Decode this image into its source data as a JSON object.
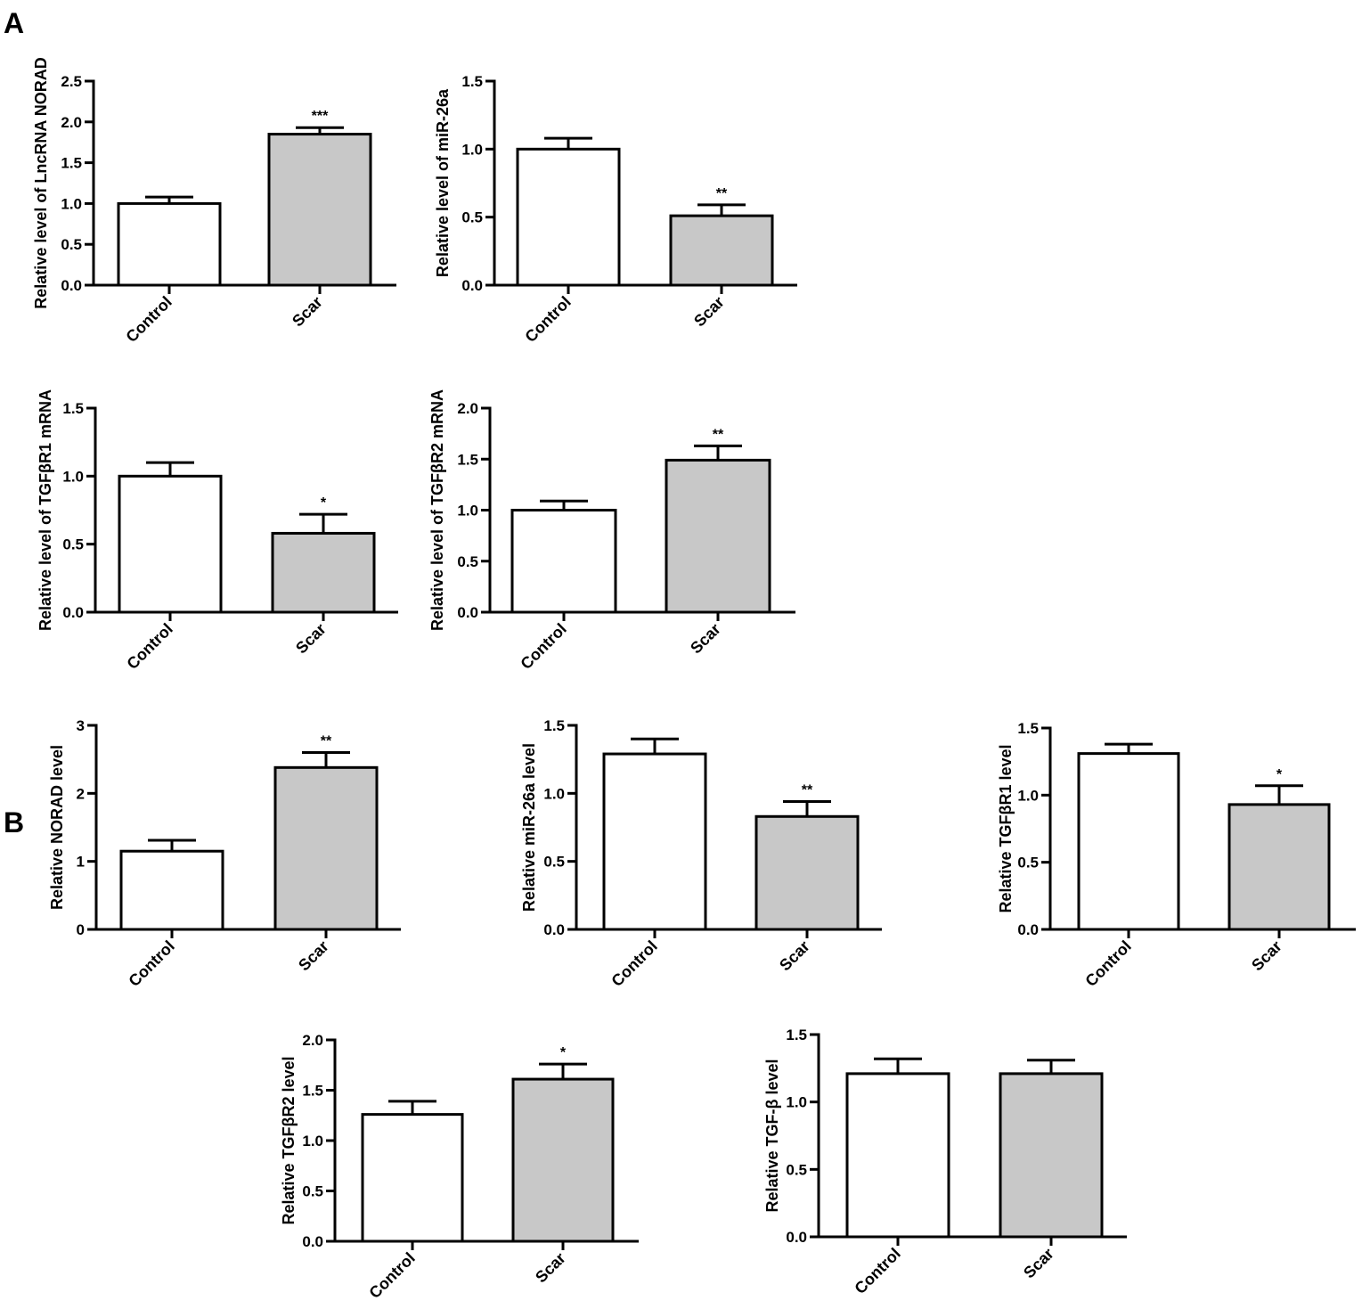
{
  "panel_labels": {
    "a": "A",
    "b": "B"
  },
  "chart_data": [
    {
      "type": "bar",
      "panel": "A",
      "categories": [
        "Control",
        "Scar"
      ],
      "values": [
        1.0,
        1.85
      ],
      "errors": [
        0.08,
        0.08
      ],
      "significance": [
        "",
        "***"
      ],
      "ylabel": "Relative level of LncRNA NORAD",
      "ylim": [
        0,
        2.5
      ],
      "yticks": [
        "0.0",
        "0.5",
        "1.0",
        "1.5",
        "2.0",
        "2.5"
      ],
      "colors": [
        "#ffffff",
        "#c8c8c8"
      ]
    },
    {
      "type": "bar",
      "panel": "A",
      "categories": [
        "Control",
        "Scar"
      ],
      "values": [
        1.0,
        0.51
      ],
      "errors": [
        0.08,
        0.08
      ],
      "significance": [
        "",
        "**"
      ],
      "ylabel": "Relative level of miR-26a",
      "ylim": [
        0,
        1.5
      ],
      "yticks": [
        "0.0",
        "0.5",
        "1.0",
        "1.5"
      ],
      "colors": [
        "#ffffff",
        "#c8c8c8"
      ]
    },
    {
      "type": "bar",
      "panel": "A",
      "categories": [
        "Control",
        "Scar"
      ],
      "values": [
        1.0,
        0.58
      ],
      "errors": [
        0.1,
        0.14
      ],
      "significance": [
        "",
        "*"
      ],
      "ylabel": "Relative level of TGFβR1 mRNA",
      "ylim": [
        0,
        1.5
      ],
      "yticks": [
        "0.0",
        "0.5",
        "1.0",
        "1.5"
      ],
      "colors": [
        "#ffffff",
        "#c8c8c8"
      ]
    },
    {
      "type": "bar",
      "panel": "A",
      "categories": [
        "Control",
        "Scar"
      ],
      "values": [
        1.0,
        1.49
      ],
      "errors": [
        0.09,
        0.14
      ],
      "significance": [
        "",
        "**"
      ],
      "ylabel": "Relative level of TGFβR2 mRNA",
      "ylim": [
        0,
        2.0
      ],
      "yticks": [
        "0.0",
        "0.5",
        "1.0",
        "1.5",
        "2.0"
      ],
      "colors": [
        "#ffffff",
        "#c8c8c8"
      ]
    },
    {
      "type": "bar",
      "panel": "B",
      "categories": [
        "Control",
        "Scar"
      ],
      "values": [
        1.15,
        2.38
      ],
      "errors": [
        0.16,
        0.22
      ],
      "significance": [
        "",
        "**"
      ],
      "ylabel": "Relative NORAD level",
      "ylim": [
        0,
        3
      ],
      "yticks": [
        "0",
        "1",
        "2",
        "3"
      ],
      "colors": [
        "#ffffff",
        "#c8c8c8"
      ]
    },
    {
      "type": "bar",
      "panel": "B",
      "categories": [
        "Control",
        "Scar"
      ],
      "values": [
        1.29,
        0.83
      ],
      "errors": [
        0.11,
        0.11
      ],
      "significance": [
        "",
        "**"
      ],
      "ylabel": "Relative miR-26a level",
      "ylim": [
        0,
        1.5
      ],
      "yticks": [
        "0.0",
        "0.5",
        "1.0",
        "1.5"
      ],
      "colors": [
        "#ffffff",
        "#c8c8c8"
      ]
    },
    {
      "type": "bar",
      "panel": "B",
      "categories": [
        "Control",
        "Scar"
      ],
      "values": [
        1.31,
        0.93
      ],
      "errors": [
        0.07,
        0.14
      ],
      "significance": [
        "",
        "*"
      ],
      "ylabel": "Relative TGFβR1 level",
      "ylim": [
        0,
        1.5
      ],
      "yticks": [
        "0.0",
        "0.5",
        "1.0",
        "1.5"
      ],
      "colors": [
        "#ffffff",
        "#c8c8c8"
      ]
    },
    {
      "type": "bar",
      "panel": "B",
      "categories": [
        "Control",
        "Scar"
      ],
      "values": [
        1.26,
        1.61
      ],
      "errors": [
        0.13,
        0.15
      ],
      "significance": [
        "",
        "*"
      ],
      "ylabel": "Relative TGFβR2 level",
      "ylim": [
        0,
        2.0
      ],
      "yticks": [
        "0.0",
        "0.5",
        "1.0",
        "1.5",
        "2.0"
      ],
      "colors": [
        "#ffffff",
        "#c8c8c8"
      ]
    },
    {
      "type": "bar",
      "panel": "B",
      "categories": [
        "Control",
        "Scar"
      ],
      "values": [
        1.21,
        1.21
      ],
      "errors": [
        0.11,
        0.1
      ],
      "significance": [
        "",
        ""
      ],
      "ylabel": "Relative TGF-β level",
      "ylim": [
        0,
        1.5
      ],
      "yticks": [
        "0.0",
        "0.5",
        "1.0",
        "1.5"
      ],
      "colors": [
        "#ffffff",
        "#c8c8c8"
      ]
    }
  ]
}
